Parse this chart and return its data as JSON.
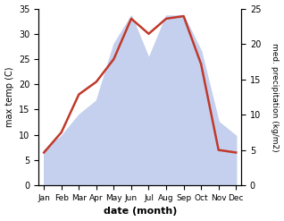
{
  "months": [
    "Jan",
    "Feb",
    "Mar",
    "Apr",
    "May",
    "Jun",
    "Jul",
    "Aug",
    "Sep",
    "Oct",
    "Nov",
    "Dec"
  ],
  "temperature": [
    6.5,
    10.5,
    18.0,
    20.5,
    25.0,
    33.0,
    30.0,
    33.0,
    33.5,
    24.0,
    7.0,
    6.5
  ],
  "precipitation": [
    5,
    7,
    10,
    12,
    20,
    24,
    18,
    24,
    24,
    19,
    9,
    7
  ],
  "temp_color": "#c0392b",
  "precip_fill_color": "#c5d0ee",
  "xlabel": "date (month)",
  "ylabel_left": "max temp (C)",
  "ylabel_right": "med. precipitation (kg/m2)",
  "ylim_left": [
    0,
    35
  ],
  "ylim_right": [
    0,
    25
  ],
  "yticks_left": [
    0,
    5,
    10,
    15,
    20,
    25,
    30,
    35
  ],
  "yticks_right": [
    0,
    5,
    10,
    15,
    20,
    25
  ],
  "bg_color": "#ffffff"
}
